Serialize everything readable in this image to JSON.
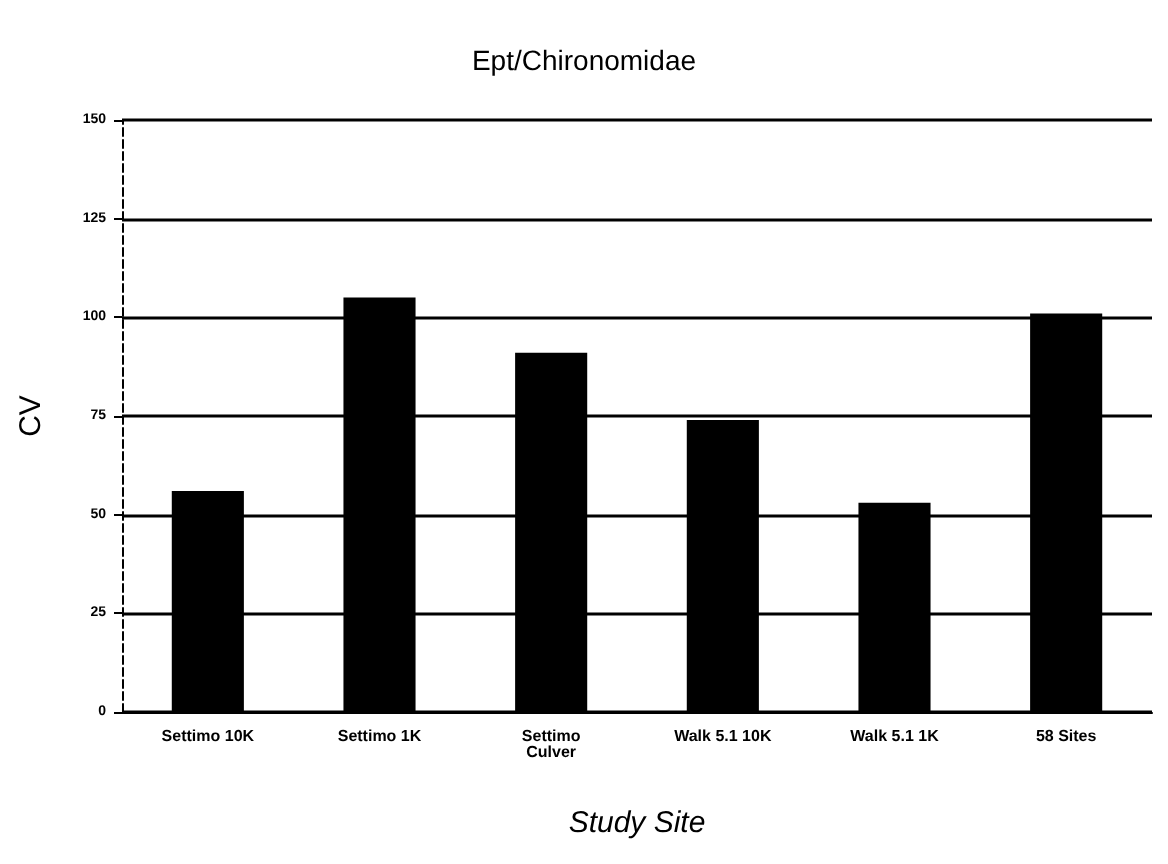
{
  "chart_data": {
    "type": "bar",
    "title": "Ept/Chironomidae",
    "xlabel": "Study Site",
    "ylabel": "CV",
    "categories": [
      "Settimo 10K",
      "Settimo 1K",
      "Settimo\nCulver",
      "Walk 5.1 10K",
      "Walk 5.1 1K",
      "58 Sites"
    ],
    "values": [
      56,
      105,
      91,
      74,
      53,
      101
    ],
    "color": "#000000",
    "ylim": [
      0,
      150
    ],
    "yticks": [
      0,
      25,
      50,
      75,
      100,
      125,
      150
    ],
    "grid": "y"
  }
}
